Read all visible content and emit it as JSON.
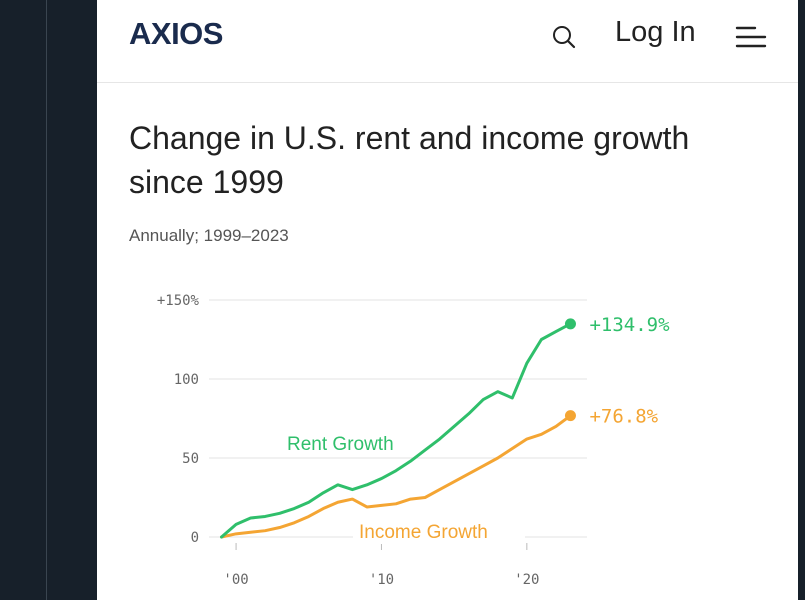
{
  "header": {
    "logo": "AXIOS",
    "login_label": "Log In"
  },
  "chart_title": "Change in U.S. rent and income growth since 1999",
  "chart_subtitle": "Annually; 1999–2023",
  "colors": {
    "rent": "#2fbf6b",
    "income": "#f4a533",
    "grid": "#e3e3e3",
    "background": "#ffffff",
    "page": "#17202a"
  },
  "chart_data": {
    "type": "line",
    "title": "Change in U.S. rent and income growth since 1999",
    "subtitle": "Annually; 1999–2023",
    "xlabel": "",
    "ylabel": "",
    "x": [
      1999,
      2000,
      2001,
      2002,
      2003,
      2004,
      2005,
      2006,
      2007,
      2008,
      2009,
      2010,
      2011,
      2012,
      2013,
      2014,
      2015,
      2016,
      2017,
      2018,
      2019,
      2020,
      2021,
      2022,
      2023
    ],
    "xlim": [
      1998,
      2024
    ],
    "ylim": [
      -5,
      150
    ],
    "x_ticks": [
      2000,
      2010,
      2020
    ],
    "x_tick_labels": [
      "'00",
      "'10",
      "'20"
    ],
    "y_ticks": [
      0,
      50,
      100,
      150
    ],
    "y_tick_labels": [
      "0",
      "50",
      "100",
      "+150%"
    ],
    "grid": true,
    "legend": "direct-labels",
    "series": [
      {
        "name": "Rent Growth",
        "end_label": "+134.9%",
        "values": [
          0,
          8,
          12,
          13,
          15,
          18,
          22,
          28,
          33,
          30,
          33,
          37,
          42,
          48,
          55,
          62,
          70,
          78,
          87,
          92,
          88,
          110,
          125,
          130,
          134.9
        ]
      },
      {
        "name": "Income Growth",
        "end_label": "+76.8%",
        "values": [
          0,
          2,
          3,
          4,
          6,
          9,
          13,
          18,
          22,
          24,
          19,
          20,
          21,
          24,
          25,
          30,
          35,
          40,
          45,
          50,
          56,
          62,
          65,
          70,
          76.8
        ]
      }
    ]
  }
}
